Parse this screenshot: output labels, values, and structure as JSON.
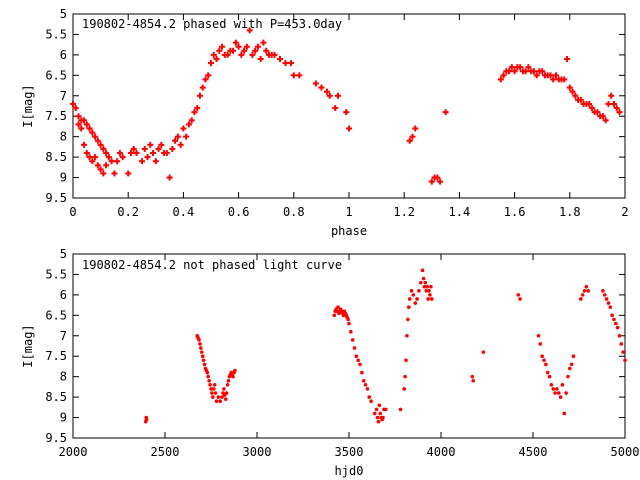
{
  "chart_data": [
    {
      "type": "scatter",
      "title": "190802-4854.2 phased with P=453.0day",
      "xlabel": "phase",
      "ylabel": "I[mag]",
      "xlim": [
        0,
        2
      ],
      "ylim": [
        9.5,
        5
      ],
      "y_inverted": true,
      "x_ticks": [
        0,
        0.2,
        0.4,
        0.6,
        0.8,
        1,
        1.2,
        1.4,
        1.6,
        1.8,
        2
      ],
      "x_tick_labels": [
        "0",
        "0.2",
        "0.4",
        "0.6",
        "0.8",
        "1",
        "1.2",
        "1.4",
        "1.6",
        "1.8",
        "2"
      ],
      "y_ticks": [
        5,
        5.5,
        6,
        6.5,
        7,
        7.5,
        8,
        8.5,
        9,
        9.5
      ],
      "y_tick_labels": [
        "5",
        "5.5",
        "6",
        "6.5",
        "7",
        "7.5",
        "8",
        "8.5",
        "9",
        "9.5"
      ],
      "marker": "plus",
      "color": "#ff0000",
      "grid": false,
      "series": [
        {
          "x": [
            0.0,
            0.01,
            0.02,
            0.02,
            0.03,
            0.03,
            0.04,
            0.04,
            0.05,
            0.05,
            0.06,
            0.06,
            0.07,
            0.07,
            0.08,
            0.08,
            0.09,
            0.09,
            0.1,
            0.1,
            0.11,
            0.11,
            0.12,
            0.12,
            0.13,
            0.14,
            0.15,
            0.16,
            0.17,
            0.18,
            0.2,
            0.21,
            0.22,
            0.23,
            0.25,
            0.26,
            0.27,
            0.28,
            0.29,
            0.3,
            0.31,
            0.32,
            0.33,
            0.34,
            0.35,
            0.36,
            0.37,
            0.38,
            0.39,
            0.4,
            0.41,
            0.42,
            0.43,
            0.44,
            0.45,
            0.46,
            0.47,
            0.48,
            0.49,
            0.5,
            0.51,
            0.52,
            0.53,
            0.54,
            0.55,
            0.56,
            0.57,
            0.58,
            0.59,
            0.6,
            0.61,
            0.62,
            0.63,
            0.64,
            0.65,
            0.66,
            0.67,
            0.68,
            0.69,
            0.7,
            0.71,
            0.72,
            0.73,
            0.75,
            0.77,
            0.79,
            0.8,
            0.82,
            0.88,
            0.9,
            0.92,
            0.93,
            0.95,
            0.96,
            0.99,
            1.0,
            1.22,
            1.23,
            1.24,
            1.3,
            1.31,
            1.32,
            1.33,
            1.35,
            1.55,
            1.56,
            1.57,
            1.58,
            1.59,
            1.6,
            1.61,
            1.62,
            1.63,
            1.64,
            1.65,
            1.66,
            1.67,
            1.68,
            1.69,
            1.7,
            1.71,
            1.72,
            1.73,
            1.74,
            1.75,
            1.76,
            1.77,
            1.78,
            1.79,
            1.8,
            1.81,
            1.82,
            1.83,
            1.84,
            1.85,
            1.86,
            1.87,
            1.88,
            1.89,
            1.9,
            1.91,
            1.92,
            1.93,
            1.94,
            1.95,
            1.96,
            1.97,
            1.98
          ],
          "y": [
            7.2,
            7.3,
            7.5,
            7.7,
            7.6,
            7.8,
            7.6,
            8.2,
            7.7,
            8.4,
            7.8,
            8.5,
            7.9,
            8.6,
            8.0,
            8.5,
            8.1,
            8.7,
            8.2,
            8.8,
            8.3,
            8.9,
            8.4,
            8.7,
            8.5,
            8.6,
            8.9,
            8.6,
            8.4,
            8.5,
            8.9,
            8.4,
            8.3,
            8.4,
            8.6,
            8.3,
            8.5,
            8.2,
            8.4,
            8.6,
            8.3,
            8.2,
            8.4,
            8.4,
            9.0,
            8.3,
            8.1,
            8.0,
            8.2,
            7.8,
            8.0,
            7.7,
            7.6,
            7.4,
            7.3,
            7.0,
            6.8,
            6.6,
            6.5,
            6.2,
            6.0,
            6.1,
            5.9,
            5.8,
            6.0,
            6.0,
            5.9,
            5.9,
            5.7,
            5.8,
            6.0,
            5.9,
            5.8,
            5.4,
            6.0,
            5.9,
            5.8,
            6.1,
            5.7,
            5.9,
            6.0,
            6.0,
            6.0,
            6.1,
            6.2,
            6.2,
            6.5,
            6.5,
            6.7,
            6.8,
            6.9,
            7.0,
            7.3,
            7.0,
            7.4,
            7.8,
            8.1,
            8.0,
            7.8,
            9.1,
            9.0,
            9.0,
            9.1,
            7.4,
            6.6,
            6.5,
            6.4,
            6.4,
            6.3,
            6.4,
            6.3,
            6.3,
            6.4,
            6.4,
            6.3,
            6.4,
            6.4,
            6.5,
            6.4,
            6.4,
            6.5,
            6.5,
            6.5,
            6.6,
            6.5,
            6.6,
            6.6,
            6.6,
            6.1,
            6.8,
            6.9,
            7.0,
            7.1,
            7.1,
            7.2,
            7.2,
            7.2,
            7.3,
            7.4,
            7.4,
            7.5,
            7.5,
            7.6,
            7.2,
            7.0,
            7.2,
            7.3,
            7.4
          ]
        }
      ]
    },
    {
      "type": "scatter",
      "title": "190802-4854.2 not phased light curve",
      "xlabel": "hjd0",
      "ylabel": "I[mag]",
      "xlim": [
        2000,
        5000
      ],
      "ylim": [
        9.5,
        5
      ],
      "y_inverted": true,
      "x_ticks": [
        2000,
        2500,
        3000,
        3500,
        4000,
        4500,
        5000
      ],
      "x_tick_labels": [
        "2000",
        "2500",
        "3000",
        "3500",
        "4000",
        "4500",
        "5000"
      ],
      "y_ticks": [
        5,
        5.5,
        6,
        6.5,
        7,
        7.5,
        8,
        8.5,
        9,
        9.5
      ],
      "y_tick_labels": [
        "5",
        "5.5",
        "6",
        "6.5",
        "7",
        "7.5",
        "8",
        "8.5",
        "9",
        "9.5"
      ],
      "marker": "dot",
      "color": "#ff0000",
      "grid": false,
      "series": [
        {
          "x": [
            2395,
            2398,
            2400,
            2675,
            2680,
            2685,
            2690,
            2695,
            2700,
            2705,
            2710,
            2715,
            2720,
            2725,
            2730,
            2735,
            2740,
            2745,
            2750,
            2755,
            2760,
            2765,
            2770,
            2775,
            2780,
            2790,
            2800,
            2810,
            2815,
            2820,
            2825,
            2830,
            2835,
            2840,
            2845,
            2850,
            2855,
            2860,
            2865,
            2870,
            2875,
            2880,
            3420,
            3425,
            3430,
            3435,
            3440,
            3445,
            3450,
            3455,
            3460,
            3465,
            3470,
            3475,
            3480,
            3485,
            3490,
            3495,
            3500,
            3510,
            3520,
            3530,
            3540,
            3550,
            3560,
            3570,
            3580,
            3590,
            3600,
            3610,
            3620,
            3640,
            3650,
            3655,
            3660,
            3665,
            3670,
            3675,
            3680,
            3685,
            3690,
            3700,
            3780,
            3800,
            3805,
            3810,
            3815,
            3820,
            3825,
            3830,
            3840,
            3850,
            3860,
            3870,
            3880,
            3890,
            3900,
            3905,
            3910,
            3915,
            3920,
            3925,
            3930,
            3935,
            3940,
            3945,
            3950,
            4170,
            4175,
            4230,
            4420,
            4430,
            4530,
            4540,
            4550,
            4560,
            4570,
            4580,
            4590,
            4600,
            4610,
            4620,
            4630,
            4640,
            4650,
            4660,
            4670,
            4680,
            4690,
            4700,
            4710,
            4720,
            4760,
            4770,
            4780,
            4790,
            4800,
            4880,
            4890,
            4900,
            4910,
            4920,
            4930,
            4940,
            4950,
            4960,
            4970,
            4980,
            4990,
            5000
          ],
          "y": [
            9.1,
            9.0,
            9.05,
            7.0,
            7.05,
            7.1,
            7.2,
            7.3,
            7.4,
            7.5,
            7.6,
            7.7,
            7.8,
            7.85,
            7.9,
            8.0,
            8.1,
            8.2,
            8.3,
            8.4,
            8.5,
            8.3,
            8.2,
            8.4,
            8.6,
            8.5,
            8.6,
            8.5,
            8.4,
            8.3,
            8.45,
            8.55,
            8.4,
            8.2,
            8.1,
            8.0,
            7.95,
            7.9,
            7.95,
            8.0,
            7.9,
            7.85,
            6.5,
            6.4,
            6.35,
            6.4,
            6.3,
            6.45,
            6.4,
            6.35,
            6.4,
            6.45,
            6.5,
            6.4,
            6.45,
            6.5,
            6.55,
            6.6,
            6.7,
            6.9,
            7.1,
            7.3,
            7.5,
            7.6,
            7.7,
            7.9,
            8.1,
            8.2,
            8.3,
            8.5,
            8.6,
            8.9,
            8.8,
            9.0,
            9.1,
            8.7,
            8.9,
            9.0,
            9.05,
            9.0,
            8.8,
            8.8,
            8.8,
            8.3,
            8.0,
            7.6,
            7.0,
            6.6,
            6.3,
            6.1,
            5.9,
            6.0,
            6.2,
            6.1,
            5.9,
            5.7,
            5.4,
            5.6,
            5.8,
            5.7,
            5.9,
            5.8,
            6.1,
            5.9,
            6.0,
            5.8,
            6.1,
            8.0,
            8.1,
            7.4,
            6.0,
            6.1,
            7.0,
            7.2,
            7.5,
            7.6,
            7.7,
            7.9,
            8.0,
            8.2,
            8.3,
            8.4,
            8.3,
            8.4,
            8.5,
            8.2,
            8.9,
            8.4,
            8.0,
            7.8,
            7.7,
            7.5,
            6.1,
            6.0,
            5.9,
            5.8,
            5.9,
            5.9,
            6.0,
            6.1,
            6.2,
            6.3,
            6.5,
            6.6,
            6.7,
            6.8,
            7.0,
            7.2,
            7.4,
            7.6
          ]
        }
      ]
    }
  ]
}
